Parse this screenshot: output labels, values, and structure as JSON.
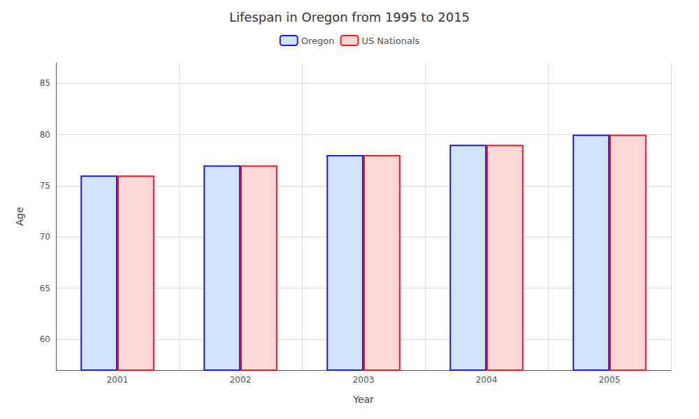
{
  "chart_data": {
    "type": "bar",
    "title": "Lifespan in Oregon from 1995 to 2015",
    "xlabel": "Year",
    "ylabel": "Age",
    "categories": [
      "2001",
      "2002",
      "2003",
      "2004",
      "2005"
    ],
    "series": [
      {
        "name": "Oregon",
        "color": "#d0e4ff",
        "values": [
          76,
          77,
          78,
          79,
          80
        ]
      },
      {
        "name": "US Nationals",
        "color": "#ffd8d8",
        "values": [
          76,
          77,
          78,
          79,
          80
        ]
      }
    ],
    "ylim": [
      57,
      87
    ],
    "yticks": [
      60,
      65,
      70,
      75,
      80,
      85
    ],
    "grid": true,
    "legend": "top"
  }
}
